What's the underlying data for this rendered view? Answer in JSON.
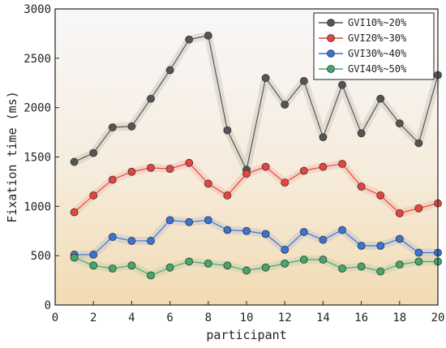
{
  "chart_data": {
    "type": "line",
    "xlabel": "participant",
    "ylabel": "Fixation time (ms)",
    "xlim": [
      0,
      20
    ],
    "ylim": [
      0,
      3000
    ],
    "xticks": [
      0,
      2,
      4,
      6,
      8,
      10,
      12,
      14,
      16,
      18,
      20
    ],
    "yticks": [
      0,
      500,
      1000,
      1500,
      2000,
      2500,
      3000
    ],
    "grid": false,
    "legend_position": "top-right",
    "x": [
      1,
      2,
      3,
      4,
      5,
      6,
      7,
      8,
      9,
      10,
      11,
      12,
      13,
      14,
      15,
      16,
      17,
      18,
      19,
      20
    ],
    "series": [
      {
        "name": "GVI10%~20%",
        "color": "#555555",
        "values": [
          1450,
          1540,
          1800,
          1810,
          2090,
          2380,
          2690,
          2730,
          1770,
          1370,
          2300,
          2030,
          2270,
          1700,
          2230,
          1740,
          2090,
          1840,
          1640,
          2330
        ]
      },
      {
        "name": "GVI20%~30%",
        "color": "#e8433f",
        "values": [
          940,
          1110,
          1270,
          1350,
          1390,
          1380,
          1440,
          1230,
          1110,
          1330,
          1400,
          1240,
          1360,
          1400,
          1430,
          1200,
          1110,
          930,
          980,
          1030
        ]
      },
      {
        "name": "GVI30%~40%",
        "color": "#3a72d6",
        "values": [
          510,
          510,
          690,
          650,
          650,
          860,
          840,
          860,
          760,
          750,
          720,
          560,
          740,
          660,
          760,
          600,
          600,
          670,
          530,
          530
        ]
      },
      {
        "name": "GVI40%~50%",
        "color": "#43a86a",
        "values": [
          480,
          400,
          370,
          400,
          300,
          380,
          440,
          420,
          400,
          350,
          380,
          420,
          460,
          460,
          370,
          390,
          340,
          410,
          440,
          440
        ]
      }
    ]
  }
}
